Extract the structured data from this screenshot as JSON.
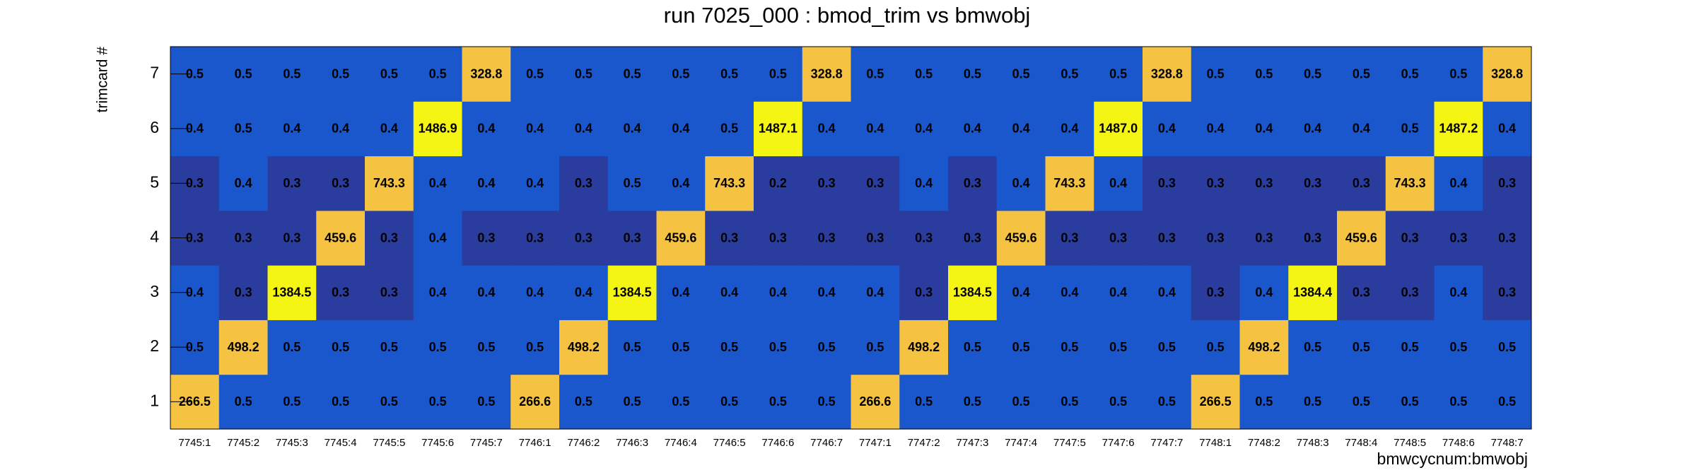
{
  "chart_data": {
    "type": "heatmap",
    "title": "run 7025_000 : bmod_trim vs bmwobj",
    "x_label": "bmwcycnum:bmwobj",
    "y_label": "trimcard #",
    "categories": [
      "7745:1",
      "7745:2",
      "7745:3",
      "7745:4",
      "7745:5",
      "7745:6",
      "7745:7",
      "7746:1",
      "7746:2",
      "7746:3",
      "7746:4",
      "7746:5",
      "7746:6",
      "7746:7",
      "7747:1",
      "7747:2",
      "7747:3",
      "7747:4",
      "7747:5",
      "7747:6",
      "7747:7",
      "7748:1",
      "7748:2",
      "7748:3",
      "7748:4",
      "7748:5",
      "7748:6",
      "7748:7"
    ],
    "y_categories": [
      "1",
      "2",
      "3",
      "4",
      "5",
      "6",
      "7"
    ],
    "log_z": true,
    "palette": [
      "#2a3d9e",
      "#1a56cc",
      "#1a56cc",
      "#1a56cc",
      "#1a56cc",
      "#1a56cc",
      "#1a56cc",
      "#1a56cc",
      "#1a56cc",
      "#1a56cc",
      "#f5c242",
      "#f5c242",
      "#f5c242",
      "#f5f514"
    ],
    "z": [
      [
        266.5,
        0.5,
        0.5,
        0.5,
        0.5,
        0.5,
        0.5,
        266.6,
        0.5,
        0.5,
        0.5,
        0.5,
        0.5,
        0.5,
        266.6,
        0.5,
        0.5,
        0.5,
        0.5,
        0.5,
        0.5,
        266.5,
        0.5,
        0.5,
        0.5,
        0.5,
        0.5,
        0.5
      ],
      [
        0.5,
        498.2,
        0.5,
        0.5,
        0.5,
        0.5,
        0.5,
        0.5,
        498.2,
        0.5,
        0.5,
        0.5,
        0.5,
        0.5,
        0.5,
        498.2,
        0.5,
        0.5,
        0.5,
        0.5,
        0.5,
        0.5,
        498.2,
        0.5,
        0.5,
        0.5,
        0.5,
        0.5
      ],
      [
        0.4,
        0.3,
        1384.5,
        0.3,
        0.3,
        0.4,
        0.4,
        0.4,
        0.4,
        1384.5,
        0.4,
        0.4,
        0.4,
        0.4,
        0.4,
        0.3,
        1384.5,
        0.4,
        0.4,
        0.4,
        0.4,
        0.3,
        0.4,
        1384.4,
        0.3,
        0.3,
        0.4,
        0.3
      ],
      [
        0.3,
        0.3,
        0.3,
        459.6,
        0.3,
        0.4,
        0.3,
        0.3,
        0.3,
        0.3,
        459.6,
        0.3,
        0.3,
        0.3,
        0.3,
        0.3,
        0.3,
        459.6,
        0.3,
        0.3,
        0.3,
        0.3,
        0.3,
        0.3,
        459.6,
        0.3,
        0.3,
        0.3
      ],
      [
        0.3,
        0.4,
        0.3,
        0.3,
        743.3,
        0.4,
        0.4,
        0.4,
        0.3,
        0.5,
        0.4,
        743.3,
        0.2,
        0.3,
        0.3,
        0.4,
        0.3,
        0.4,
        743.3,
        0.4,
        0.3,
        0.3,
        0.3,
        0.3,
        0.3,
        743.3,
        0.4,
        0.3
      ],
      [
        0.4,
        0.5,
        0.4,
        0.4,
        0.4,
        1486.9,
        0.4,
        0.4,
        0.4,
        0.4,
        0.4,
        0.5,
        1487.1,
        0.4,
        0.4,
        0.4,
        0.4,
        0.4,
        0.4,
        1487.0,
        0.4,
        0.4,
        0.4,
        0.4,
        0.4,
        0.5,
        1487.2,
        0.4
      ],
      [
        0.5,
        0.5,
        0.5,
        0.5,
        0.5,
        0.5,
        328.8,
        0.5,
        0.5,
        0.5,
        0.5,
        0.5,
        0.5,
        328.8,
        0.5,
        0.5,
        0.5,
        0.5,
        0.5,
        0.5,
        328.8,
        0.5,
        0.5,
        0.5,
        0.5,
        0.5,
        0.5,
        328.8
      ]
    ],
    "value_labels": [
      [
        "266.5",
        "0.5",
        "0.5",
        "0.5",
        "0.5",
        "0.5",
        "0.5",
        "266.6",
        "0.5",
        "0.5",
        "0.5",
        "0.5",
        "0.5",
        "0.5",
        "266.6",
        "0.5",
        "0.5",
        "0.5",
        "0.5",
        "0.5",
        "0.5",
        "266.5",
        "0.5",
        "0.5",
        "0.5",
        "0.5",
        "0.5",
        "0.5"
      ],
      [
        "0.5",
        "498.2",
        "0.5",
        "0.5",
        "0.5",
        "0.5",
        "0.5",
        "0.5",
        "498.2",
        "0.5",
        "0.5",
        "0.5",
        "0.5",
        "0.5",
        "0.5",
        "498.2",
        "0.5",
        "0.5",
        "0.5",
        "0.5",
        "0.5",
        "0.5",
        "498.2",
        "0.5",
        "0.5",
        "0.5",
        "0.5",
        "0.5"
      ],
      [
        "0.4",
        "0.3",
        "1384.5",
        "0.3",
        "0.3",
        "0.4",
        "0.4",
        "0.4",
        "0.4",
        "1384.5",
        "0.4",
        "0.4",
        "0.4",
        "0.4",
        "0.4",
        "0.3",
        "1384.5",
        "0.4",
        "0.4",
        "0.4",
        "0.4",
        "0.3",
        "0.4",
        "1384.4",
        "0.3",
        "0.3",
        "0.4",
        "0.3"
      ],
      [
        "0.3",
        "0.3",
        "0.3",
        "459.6",
        "0.3",
        "0.4",
        "0.3",
        "0.3",
        "0.3",
        "0.3",
        "459.6",
        "0.3",
        "0.3",
        "0.3",
        "0.3",
        "0.3",
        "0.3",
        "459.6",
        "0.3",
        "0.3",
        "0.3",
        "0.3",
        "0.3",
        "0.3",
        "459.6",
        "0.3",
        "0.3",
        "0.3"
      ],
      [
        "0.3",
        "0.4",
        "0.3",
        "0.3",
        "743.3",
        "0.4",
        "0.4",
        "0.4",
        "0.3",
        "0.5",
        "0.4",
        "743.3",
        "0.2",
        "0.3",
        "0.3",
        "0.4",
        "0.3",
        "0.4",
        "743.3",
        "0.4",
        "0.3",
        "0.3",
        "0.3",
        "0.3",
        "0.3",
        "743.3",
        "0.4",
        "0.3"
      ],
      [
        "0.4",
        "0.5",
        "0.4",
        "0.4",
        "0.4",
        "1486.9",
        "0.4",
        "0.4",
        "0.4",
        "0.4",
        "0.4",
        "0.5",
        "1487.1",
        "0.4",
        "0.4",
        "0.4",
        "0.4",
        "0.4",
        "0.4",
        "1487.0",
        "0.4",
        "0.4",
        "0.4",
        "0.4",
        "0.4",
        "0.5",
        "1487.2",
        "0.4"
      ],
      [
        "0.5",
        "0.5",
        "0.5",
        "0.5",
        "0.5",
        "0.5",
        "328.8",
        "0.5",
        "0.5",
        "0.5",
        "0.5",
        "0.5",
        "0.5",
        "328.8",
        "0.5",
        "0.5",
        "0.5",
        "0.5",
        "0.5",
        "0.5",
        "328.8",
        "0.5",
        "0.5",
        "0.5",
        "0.5",
        "0.5",
        "0.5",
        "328.8"
      ]
    ]
  }
}
